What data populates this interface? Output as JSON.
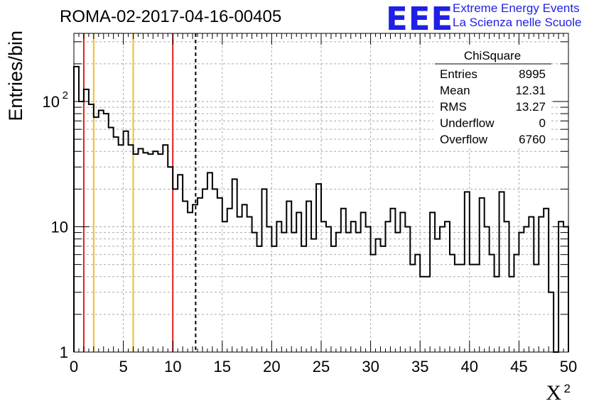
{
  "header": {
    "title": "ROMA-02-2017-04-16-00405",
    "logo_text": "EEE",
    "logo_line1": "Extreme Energy Events",
    "logo_line2": "La Scienza nelle Scuole"
  },
  "colors": {
    "logo": "#1f1fe6",
    "red_line": "#e0201a",
    "yellow_line": "#f0c020",
    "grid": "#aaaaaa"
  },
  "chart_data": {
    "type": "histogram",
    "xlabel": "X",
    "xlabel_superscript": "2",
    "ylabel": "Entries/bin",
    "xlim": [
      0,
      50
    ],
    "ylim": [
      1,
      350
    ],
    "yscale": "log",
    "bin_width": 0.5,
    "grid": true,
    "x_ticks": [
      "0",
      "5",
      "10",
      "15",
      "20",
      "25",
      "30",
      "35",
      "40",
      "45",
      "50"
    ],
    "y_ticks": [
      {
        "value": 1,
        "label": "1"
      },
      {
        "value": 10,
        "label": "10"
      },
      {
        "value": 100,
        "label": "10",
        "exp": "2"
      }
    ],
    "values": [
      190,
      100,
      125,
      95,
      75,
      85,
      80,
      62,
      52,
      45,
      58,
      45,
      38,
      42,
      39,
      38,
      40,
      38,
      45,
      30,
      20,
      26,
      16,
      13,
      15,
      17,
      20,
      27,
      20,
      17,
      11,
      14,
      24,
      12,
      15,
      12,
      9,
      7,
      20,
      10,
      7,
      11,
      9,
      16,
      9,
      13,
      7,
      16,
      8,
      22,
      11,
      10,
      7,
      9,
      14,
      9,
      11,
      9,
      13,
      10,
      6,
      8,
      7,
      11,
      14,
      9,
      13,
      10,
      5,
      6,
      4,
      4,
      13,
      8,
      10,
      11,
      6,
      5,
      5,
      19,
      5,
      5,
      17,
      10,
      6,
      4,
      19,
      11,
      4,
      6,
      9,
      10,
      12,
      5,
      12,
      14,
      3,
      1,
      11,
      10
    ],
    "vertical_lines": [
      {
        "x": 1,
        "color": "red"
      },
      {
        "x": 2,
        "color": "yellow"
      },
      {
        "x": 6,
        "color": "yellow"
      },
      {
        "x": 10,
        "color": "red"
      },
      {
        "x": 12.31,
        "color": "black",
        "style": "dashed"
      }
    ],
    "stats_box": {
      "title": "ChiSquare",
      "rows": [
        {
          "label": "Entries",
          "value": "8995"
        },
        {
          "label": "Mean",
          "value": "12.31"
        },
        {
          "label": "RMS",
          "value": "13.27"
        },
        {
          "label": "Underflow",
          "value": "0"
        },
        {
          "label": "Overflow",
          "value": "6760"
        }
      ]
    }
  }
}
